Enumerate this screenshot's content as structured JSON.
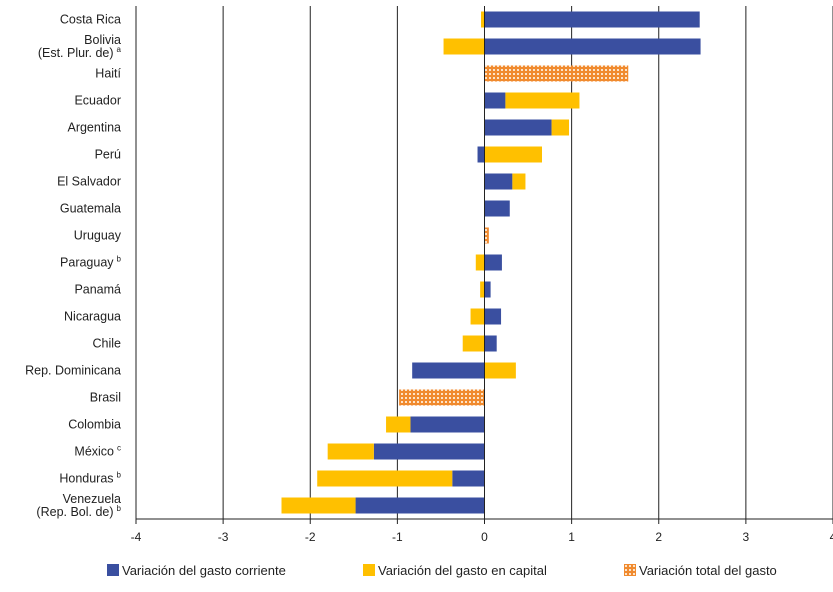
{
  "chart_data": {
    "type": "bar",
    "orientation": "horizontal",
    "stacked": true,
    "title": "",
    "xlabel": "",
    "ylabel": "",
    "xlim": [
      -4,
      4
    ],
    "xticks": [
      "-4",
      "-3",
      "-2",
      "-1",
      "0",
      "1",
      "2",
      "3",
      "4"
    ],
    "grid": true,
    "legend_position": "bottom",
    "colors": {
      "gasto_corriente": "#3a4fa0",
      "gasto_capital": "#ffc000",
      "variacion_total": "#f08a2e"
    },
    "categories": [
      {
        "lines": [
          "Costa Rica"
        ],
        "sup": ""
      },
      {
        "lines": [
          "Bolivia",
          "(Est. Plur. de)"
        ],
        "sup": "a"
      },
      {
        "lines": [
          "Haití"
        ],
        "sup": ""
      },
      {
        "lines": [
          "Ecuador"
        ],
        "sup": ""
      },
      {
        "lines": [
          "Argentina"
        ],
        "sup": ""
      },
      {
        "lines": [
          "Perú"
        ],
        "sup": ""
      },
      {
        "lines": [
          "El Salvador"
        ],
        "sup": ""
      },
      {
        "lines": [
          "Guatemala"
        ],
        "sup": ""
      },
      {
        "lines": [
          "Uruguay"
        ],
        "sup": ""
      },
      {
        "lines": [
          "Paraguay"
        ],
        "sup": "b"
      },
      {
        "lines": [
          "Panamá"
        ],
        "sup": ""
      },
      {
        "lines": [
          "Nicaragua"
        ],
        "sup": ""
      },
      {
        "lines": [
          "Chile"
        ],
        "sup": ""
      },
      {
        "lines": [
          "Rep. Dominicana"
        ],
        "sup": ""
      },
      {
        "lines": [
          "Brasil"
        ],
        "sup": ""
      },
      {
        "lines": [
          "Colombia"
        ],
        "sup": ""
      },
      {
        "lines": [
          "México"
        ],
        "sup": "c"
      },
      {
        "lines": [
          "Honduras"
        ],
        "sup": "b"
      },
      {
        "lines": [
          "Venezuela",
          "(Rep. Bol. de)"
        ],
        "sup": "b"
      }
    ],
    "series": [
      {
        "name": "Variación del gasto corriente",
        "key": "gasto_corriente",
        "values": [
          2.47,
          2.48,
          null,
          0.24,
          0.77,
          -0.08,
          0.32,
          0.29,
          null,
          0.2,
          0.07,
          0.19,
          0.14,
          -0.83,
          null,
          -0.85,
          -1.27,
          -0.37,
          -1.48
        ]
      },
      {
        "name": "Variación del gasto en capital",
        "key": "gasto_capital",
        "values": [
          -0.04,
          -0.47,
          null,
          0.85,
          0.2,
          0.66,
          0.15,
          0.0,
          null,
          -0.1,
          -0.05,
          -0.16,
          -0.25,
          0.36,
          null,
          -0.28,
          -0.53,
          -1.55,
          -0.85
        ]
      },
      {
        "name": "Variación total del gasto",
        "key": "variacion_total",
        "values": [
          null,
          null,
          1.65,
          null,
          null,
          null,
          null,
          null,
          0.05,
          null,
          null,
          null,
          null,
          null,
          -0.98,
          null,
          null,
          null,
          null
        ]
      }
    ]
  }
}
